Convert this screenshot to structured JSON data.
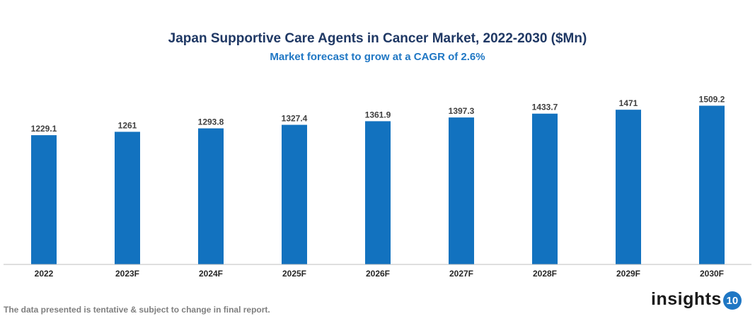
{
  "chart_data": {
    "type": "bar",
    "title": "Japan Supportive Care Agents in Cancer Market, 2022-2030 ($Mn)",
    "subtitle": "Market forecast to grow at a CAGR of 2.6%",
    "categories": [
      "2022",
      "2023F",
      "2024F",
      "2025F",
      "2026F",
      "2027F",
      "2028F",
      "2029F",
      "2030F"
    ],
    "values": [
      1229.1,
      1261,
      1293.8,
      1327.4,
      1361.9,
      1397.3,
      1433.7,
      1471,
      1509.2
    ],
    "data_labels": [
      "1229.1",
      "1261",
      "1293.8",
      "1327.4",
      "1361.9",
      "1397.3",
      "1433.7",
      "1471",
      "1509.2"
    ],
    "xlabel": "",
    "ylabel": "",
    "ylim": [
      0,
      1600
    ],
    "grid": false,
    "bar_color": "#1272bf"
  },
  "footnote": "The data presented is tentative & subject to change in final report.",
  "logo": {
    "text": "insights",
    "badge": "10"
  }
}
